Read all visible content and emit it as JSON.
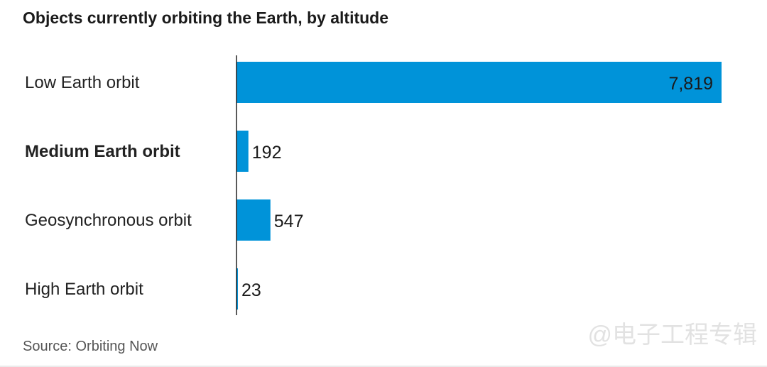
{
  "chart_data": {
    "type": "bar",
    "orientation": "horizontal",
    "title": "Objects currently orbiting the Earth, by altitude",
    "categories": [
      "Low Earth orbit",
      "Medium Earth orbit",
      "Geosynchronous orbit",
      "High Earth orbit"
    ],
    "values": [
      7819,
      192,
      547,
      23
    ],
    "value_labels": [
      "7,819",
      "192",
      "547",
      "23"
    ],
    "highlighted_category": "Medium Earth orbit",
    "xlabel": "",
    "ylabel": "",
    "xlim": [
      0,
      7819
    ],
    "grid": false,
    "legend": "none",
    "bar_color": "#0093d9",
    "source": "Source: Orbiting Now"
  },
  "watermark": "@电子工程专辑"
}
